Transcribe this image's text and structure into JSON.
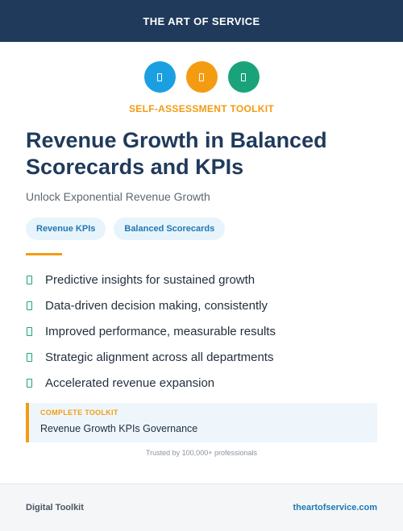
{
  "header": {
    "brand": "THE ART OF SERVICE"
  },
  "icons": [
    {
      "name": "document-icon",
      "color": "#1aa0e0"
    },
    {
      "name": "document-icon",
      "color": "#f39c12"
    },
    {
      "name": "document-icon",
      "color": "#1aa37a"
    }
  ],
  "kicker": "SELF-ASSESSMENT TOOLKIT",
  "title": "Revenue Growth in Balanced Scorecards and KPIs",
  "subtitle": "Unlock Exponential Revenue Growth",
  "tags": [
    "Revenue KPIs",
    "Balanced Scorecards"
  ],
  "benefits": [
    "Predictive insights for sustained growth",
    "Data-driven decision making, consistently",
    "Improved performance, measurable results",
    "Strategic alignment across all departments",
    "Accelerated revenue expansion"
  ],
  "callout": {
    "label": "COMPLETE TOOLKIT",
    "text": "Revenue Growth KPIs Governance"
  },
  "trusted": "Trusted by 100,000+ professionals",
  "footer": {
    "left": "Digital Toolkit",
    "right": "theartofservice.com"
  },
  "colors": {
    "navy": "#1f3a5b",
    "accent_orange": "#f39c12",
    "accent_blue": "#1f78b4",
    "check_green": "#1aa37a"
  }
}
